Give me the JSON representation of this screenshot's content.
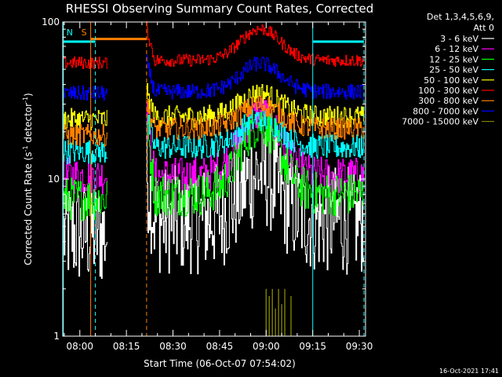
{
  "chart_data": {
    "type": "line",
    "title": "RHESSI Observing Summary Count Rates, Corrected",
    "xlabel": "Start Time (06-Oct-07 07:54:02)",
    "ylabel": "Corrected Count Rate (s",
    "ylabel_sup1": "-1",
    "ylabel_mid": " detector",
    "ylabel_sup2": "-1",
    "ylabel_end": ")",
    "yscale": "log",
    "ylim": [
      1,
      100
    ],
    "xlim_minutes_after_0800": [
      -5.5,
      92
    ],
    "x_ticks": [
      {
        "label": "08:00",
        "m": 0
      },
      {
        "label": "08:15",
        "m": 15
      },
      {
        "label": "08:30",
        "m": 30
      },
      {
        "label": "08:45",
        "m": 45
      },
      {
        "label": "09:00",
        "m": 60
      },
      {
        "label": "09:15",
        "m": 75
      },
      {
        "label": "09:30",
        "m": 90
      }
    ],
    "y_ticks": [
      {
        "label": "1",
        "v": 1
      },
      {
        "label": "10",
        "v": 10
      },
      {
        "label": "100",
        "v": 100
      }
    ],
    "legend_header": [
      "Det 1,3,4,5,6,9,",
      "Att 0"
    ],
    "legend_position": "right",
    "series": [
      {
        "name": "3 - 6 keV",
        "color": "#ffffff",
        "pre": 4.5,
        "post": 5.5,
        "bump": 0.3,
        "noise": 0.35
      },
      {
        "name": "6 - 12 keV",
        "color": "#ff00ff",
        "pre": 10.5,
        "post": 10.5,
        "bump": 0.4,
        "noise": 0.12
      },
      {
        "name": "12 - 25 keV",
        "color": "#00ff00",
        "pre": 7.5,
        "post": 8,
        "bump": 0.45,
        "noise": 0.14
      },
      {
        "name": "25 - 50 keV",
        "color": "#00ffff",
        "pre": 15,
        "post": 16,
        "bump": 0.18,
        "noise": 0.08
      },
      {
        "name": "50 - 100 keV",
        "color": "#ffff00",
        "pre": 24,
        "post": 25,
        "bump": 0.15,
        "noise": 0.07
      },
      {
        "name": "100 - 300 keV",
        "color": "#ff0000",
        "pre": 55,
        "post": 57,
        "bump": 0.2,
        "noise": 0.04
      },
      {
        "name": "300 - 800 keV",
        "color": "#ff8000",
        "pre": 19,
        "post": 21,
        "bump": 0.15,
        "noise": 0.07
      },
      {
        "name": "800 - 7000 keV",
        "color": "#0000ff",
        "pre": 35,
        "post": 36,
        "bump": 0.18,
        "noise": 0.05
      },
      {
        "name": "7000 - 15000 keV",
        "color": "#808000",
        "pre": null,
        "post": null,
        "bump": 0,
        "noise": 0
      }
    ],
    "events": [
      {
        "label": "S",
        "color": "#ff8000",
        "start_m": 3.5,
        "end_m": 21.5
      },
      {
        "label": "N",
        "color": "#00ffff",
        "start_m": -5.3,
        "end_m": 5.0
      },
      {
        "label": "",
        "color": "#00ffff",
        "start_m": 75.0,
        "end_m": 91.5
      }
    ],
    "level_ranges": [
      {
        "from": -5.3,
        "to": 5.0,
        "value": 75,
        "color": "#00ffff"
      },
      {
        "from": 3.5,
        "to": 21.5,
        "value": 78,
        "color": "#ff8000"
      },
      {
        "from": 75.0,
        "to": 91.5,
        "value": 75,
        "color": "#00ffff"
      }
    ],
    "gaps_m": [
      [
        8.8,
        21.0
      ]
    ],
    "bump_center_m": 58,
    "footnote": "16-Oct-2021 17:41"
  }
}
